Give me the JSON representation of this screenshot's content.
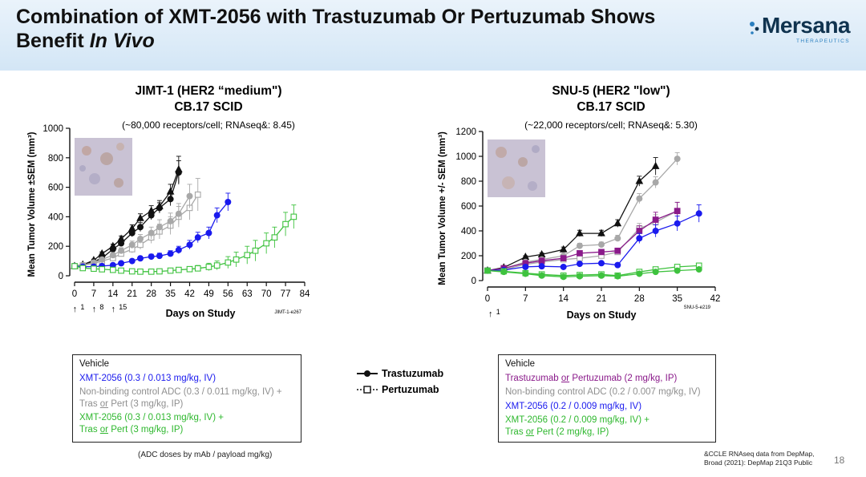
{
  "slide": {
    "title_line1": "Combination of XMT-2056 with Trastuzumab Or Pertuzumab Shows",
    "title_line2_plain": "Benefit ",
    "title_line2_italic": "In Vivo",
    "logo_text": "Mersana",
    "logo_sub": "THERAPEUTICS",
    "page_number": "18",
    "dose_note": "(ADC doses by mAb / payload mg/kg)",
    "footnote_line1": "&CCLE RNAseq data from DepMap,",
    "footnote_line2": "Broad (2021): DepMap 21Q3 Public",
    "mid_legend": {
      "line1": "Trastuzumab",
      "line2": "Pertuzumab"
    }
  },
  "legend_left": {
    "vehicle": "Vehicle",
    "xmt": "XMT-2056 (0.3 / 0.013 mg/kg, IV)",
    "nb_line1": "Non-binding control ADC (0.3 / 0.011 mg/kg, IV) +",
    "nb_line2_pre": "Tras ",
    "nb_line2_or": "or",
    "nb_line2_post": " Pert (3 mg/kg, IP)",
    "combo_line1": "XMT-2056 (0.3 / 0.013 mg/kg, IV) +",
    "combo_line2_pre": "Tras ",
    "combo_line2_or": "or",
    "combo_line2_post": " Pert (3 mg/kg, IP)"
  },
  "legend_right": {
    "vehicle": "Vehicle",
    "tp_pre": "Trastuzumab ",
    "tp_or": "or",
    "tp_post": " Pertuzumab (2 mg/kg, IP)",
    "nb": "Non-binding control ADC (0.2 / 0.007 mg/kg, IV)",
    "xmt": "XMT-2056 (0.2 / 0.009 mg/kg, IV)",
    "combo_line1": "XMT-2056 (0.2 / 0.009 mg/kg, IV) +",
    "combo_line2_pre": "Tras ",
    "combo_line2_or": "or",
    "combo_line2_post": " Pert (2 mg/kg, IP)"
  },
  "colors": {
    "black": "#111111",
    "gray": "#a8a8a8",
    "blue": "#1a1aee",
    "green": "#3ec23e",
    "purple": "#8a1a8a",
    "header_bg": "#d8e8f6"
  },
  "chart_data": [
    {
      "type": "line",
      "title_line1": "JIMT-1 (HER2 “medium\")",
      "title_line2": "CB.17 SCID",
      "subtitle": "(~80,000 receptors/cell; RNAseq&: 8.45)",
      "xlabel": "Days on Study",
      "ylabel": "Mean Tumor Volume ±SEM (mm³)",
      "xlim": [
        0,
        84
      ],
      "ylim": [
        0,
        1000
      ],
      "xticks": [
        0,
        7,
        14,
        21,
        28,
        35,
        42,
        49,
        56,
        63,
        70,
        77,
        84
      ],
      "yticks": [
        0,
        200,
        400,
        600,
        800,
        1000
      ],
      "dosing_marks": [
        1,
        8,
        15
      ],
      "corner_label": "JIMT-1-e267",
      "series": [
        {
          "name": "Trastuzumab",
          "color": "#111111",
          "marker": "triangle",
          "fill": true,
          "x": [
            0,
            3,
            7,
            10,
            14,
            17,
            21,
            24,
            28,
            31,
            35,
            38
          ],
          "y": [
            65,
            75,
            105,
            150,
            200,
            250,
            320,
            390,
            440,
            470,
            570,
            720
          ],
          "err": [
            5,
            6,
            8,
            12,
            15,
            20,
            25,
            30,
            35,
            40,
            50,
            90
          ]
        },
        {
          "name": "Vehicle",
          "color": "#111111",
          "marker": "circle",
          "fill": true,
          "x": [
            0,
            3,
            7,
            10,
            14,
            17,
            21,
            24,
            28,
            31,
            35,
            38
          ],
          "y": [
            65,
            72,
            95,
            120,
            180,
            220,
            290,
            330,
            410,
            460,
            520,
            700
          ],
          "err": [
            5,
            6,
            8,
            10,
            15,
            20,
            25,
            30,
            30,
            35,
            45,
            80
          ]
        },
        {
          "name": "Pertuzumab",
          "color": "#a8a8a8",
          "marker": "square",
          "fill": false,
          "x": [
            0,
            3,
            7,
            10,
            14,
            17,
            21,
            24,
            28,
            31,
            35,
            38,
            42,
            45
          ],
          "y": [
            65,
            70,
            85,
            100,
            120,
            150,
            180,
            210,
            260,
            300,
            340,
            400,
            460,
            550
          ],
          "err": [
            5,
            6,
            8,
            10,
            15,
            20,
            25,
            30,
            40,
            50,
            60,
            70,
            80,
            110
          ]
        },
        {
          "name": "Non-binding control ADC + Tras or Pert",
          "color": "#a8a8a8",
          "marker": "circle",
          "fill": true,
          "x": [
            0,
            3,
            7,
            10,
            14,
            17,
            21,
            24,
            28,
            31,
            35,
            38,
            42
          ],
          "y": [
            65,
            72,
            90,
            110,
            140,
            170,
            210,
            250,
            290,
            330,
            370,
            420,
            540
          ],
          "err": [
            5,
            6,
            8,
            10,
            15,
            20,
            25,
            30,
            40,
            50,
            55,
            70,
            80
          ]
        },
        {
          "name": "XMT-2056",
          "color": "#1a1aee",
          "marker": "circle",
          "fill": true,
          "x": [
            0,
            3,
            7,
            10,
            14,
            17,
            21,
            24,
            28,
            31,
            35,
            38,
            42,
            45,
            49,
            52,
            56
          ],
          "y": [
            65,
            62,
            62,
            66,
            72,
            85,
            100,
            118,
            130,
            135,
            150,
            175,
            210,
            260,
            290,
            410,
            500
          ],
          "err": [
            5,
            5,
            6,
            6,
            8,
            10,
            12,
            14,
            16,
            18,
            20,
            25,
            30,
            35,
            40,
            50,
            60
          ]
        },
        {
          "name": "XMT-2056 + Tras or Pert",
          "color": "#3ec23e",
          "marker": "square",
          "fill": false,
          "x": [
            0,
            3,
            7,
            10,
            14,
            17,
            21,
            24,
            28,
            31,
            35,
            38,
            42,
            45,
            49,
            52,
            56,
            59,
            63,
            66,
            70,
            73,
            77,
            80
          ],
          "y": [
            65,
            52,
            48,
            44,
            40,
            35,
            30,
            28,
            28,
            30,
            35,
            40,
            45,
            50,
            60,
            70,
            90,
            110,
            140,
            170,
            220,
            260,
            350,
            400
          ],
          "err": [
            5,
            5,
            5,
            5,
            5,
            5,
            5,
            5,
            5,
            6,
            8,
            10,
            15,
            20,
            25,
            30,
            40,
            50,
            60,
            70,
            70,
            70,
            80,
            80
          ]
        }
      ]
    },
    {
      "type": "line",
      "title_line1": "SNU-5 (HER2 \"low\")",
      "title_line2": "CB.17 SCID",
      "subtitle": "(~22,000 receptors/cell; RNAseq&: 5.30)",
      "xlabel": "Days on Study",
      "ylabel": "Mean Tumor Volume +/- SEM (mm³)",
      "xlim": [
        0,
        42
      ],
      "ylim": [
        0,
        1200
      ],
      "xticks": [
        0,
        7,
        14,
        21,
        28,
        35,
        42
      ],
      "yticks": [
        0,
        200,
        400,
        600,
        800,
        1000,
        1200
      ],
      "dosing_marks": [
        1
      ],
      "corner_label": "SNU-5-e219",
      "series": [
        {
          "name": "Trastuzumab",
          "color": "#111111",
          "marker": "triangle",
          "fill": true,
          "x": [
            0,
            3,
            7,
            10,
            14,
            17,
            21,
            24,
            28,
            31
          ],
          "y": [
            80,
            105,
            190,
            210,
            250,
            380,
            380,
            460,
            800,
            920
          ],
          "err": [
            5,
            8,
            10,
            12,
            20,
            25,
            25,
            30,
            40,
            70
          ]
        },
        {
          "name": "Non-binding control ADC",
          "color": "#a8a8a8",
          "marker": "circle",
          "fill": true,
          "x": [
            0,
            3,
            7,
            10,
            14,
            17,
            21,
            24,
            28,
            31,
            35
          ],
          "y": [
            80,
            95,
            150,
            170,
            200,
            280,
            290,
            340,
            660,
            790,
            980
          ],
          "err": [
            5,
            6,
            8,
            10,
            15,
            20,
            20,
            25,
            40,
            45,
            50
          ]
        },
        {
          "name": "Pertuzumab",
          "color": "#a8a8a8",
          "marker": "square",
          "fill": false,
          "x": [
            0,
            3,
            7,
            10,
            14,
            17,
            21,
            24,
            28,
            31,
            35
          ],
          "y": [
            80,
            90,
            130,
            150,
            170,
            180,
            200,
            230,
            420,
            470,
            560
          ],
          "err": [
            5,
            6,
            8,
            10,
            12,
            15,
            15,
            20,
            40,
            60,
            70
          ]
        },
        {
          "name": "Trastuzumab or Pertuzumab",
          "color": "#8a1a8a",
          "marker": "square",
          "fill": true,
          "x": [
            0,
            3,
            7,
            10,
            14,
            17,
            21,
            24,
            28,
            31,
            35
          ],
          "y": [
            80,
            100,
            140,
            160,
            180,
            220,
            230,
            240,
            400,
            490,
            560
          ],
          "err": [
            5,
            6,
            8,
            10,
            12,
            15,
            18,
            20,
            40,
            60,
            70
          ]
        },
        {
          "name": "XMT-2056",
          "color": "#1a1aee",
          "marker": "circle",
          "fill": true,
          "x": [
            0,
            3,
            7,
            10,
            14,
            17,
            21,
            24,
            28,
            31,
            35,
            39
          ],
          "y": [
            80,
            85,
            110,
            115,
            110,
            135,
            140,
            125,
            340,
            400,
            460,
            540
          ],
          "err": [
            5,
            6,
            8,
            8,
            10,
            12,
            15,
            15,
            40,
            50,
            60,
            70
          ]
        },
        {
          "name": "XMT-2056 + Tras or Pert",
          "color": "#3ec23e",
          "marker": "square",
          "fill": false,
          "x": [
            0,
            3,
            7,
            10,
            14,
            17,
            21,
            24,
            28,
            31,
            35,
            39
          ],
          "y": [
            80,
            75,
            60,
            50,
            40,
            45,
            50,
            40,
            70,
            90,
            110,
            120
          ],
          "err": [
            5,
            5,
            5,
            5,
            5,
            5,
            6,
            6,
            10,
            12,
            15,
            20
          ]
        },
        {
          "name": "Vehicle",
          "color": "#3ec23e",
          "marker": "circle",
          "fill": true,
          "x": [
            0,
            3,
            7,
            10,
            14,
            17,
            21,
            24,
            28,
            31,
            35,
            39
          ],
          "y": [
            80,
            70,
            55,
            40,
            30,
            35,
            40,
            35,
            55,
            70,
            80,
            90
          ],
          "err": [
            5,
            5,
            5,
            5,
            5,
            5,
            5,
            5,
            8,
            10,
            12,
            15
          ]
        }
      ]
    }
  ]
}
